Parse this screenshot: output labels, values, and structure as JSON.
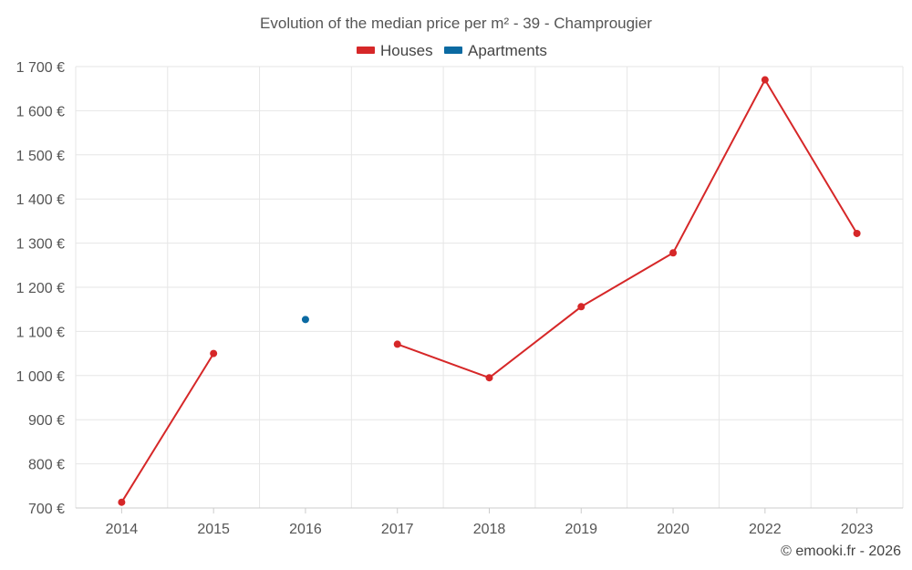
{
  "chart_data": {
    "type": "line",
    "title": "Evolution of the median price per m² - 39 - Champrougier",
    "categories": [
      "2014",
      "2015",
      "2016",
      "2017",
      "2018",
      "2019",
      "2020",
      "2022",
      "2023"
    ],
    "series": [
      {
        "name": "Houses",
        "color": "#d62728",
        "values": [
          713,
          1050,
          null,
          1071,
          995,
          1156,
          1278,
          1670,
          1322
        ]
      },
      {
        "name": "Apartments",
        "color": "#0b6aa2",
        "values": [
          null,
          null,
          1127,
          null,
          null,
          null,
          null,
          null,
          null
        ]
      }
    ],
    "ylim": [
      700,
      1700
    ],
    "yticks": [
      700,
      800,
      900,
      1000,
      1100,
      1200,
      1300,
      1400,
      1500,
      1600,
      1700
    ],
    "ytick_labels": [
      "700 €",
      "800 €",
      "900 €",
      "1 000 €",
      "1 100 €",
      "1 200 €",
      "1 300 €",
      "1 400 €",
      "1 500 €",
      "1 600 €",
      "1 700 €"
    ],
    "xlabel": "",
    "ylabel": "",
    "legend": "top-center",
    "grid": true
  },
  "credit": "© emooki.fr - 2026"
}
